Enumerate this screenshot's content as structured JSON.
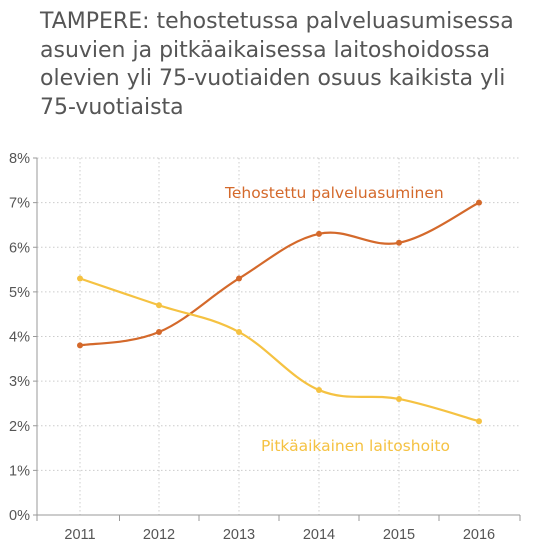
{
  "chart_data": {
    "type": "line",
    "title": "TAMPERE: tehostetussa palveluasumisessa asuvien ja pitkäaikaisessa laitoshoidossa olevien yli 75-vuotiaiden osuus kaikista yli 75-vuotiaista",
    "xlabel": "",
    "ylabel": "",
    "x": [
      "2011",
      "2012",
      "2013",
      "2014",
      "2015",
      "2016"
    ],
    "ylim": [
      0,
      8
    ],
    "yticks": [
      "0%",
      "1%",
      "2%",
      "3%",
      "4%",
      "5%",
      "6%",
      "7%",
      "8%"
    ],
    "grid": true,
    "legend": "inline",
    "series": [
      {
        "name": "Tehostettu palveluasuminen",
        "color": "#d4692b",
        "values": [
          3.8,
          4.1,
          5.3,
          6.3,
          6.1,
          7.0
        ]
      },
      {
        "name": "Pitkäaikainen laitoshoito",
        "color": "#f5c242",
        "values": [
          5.3,
          4.7,
          4.1,
          2.8,
          2.6,
          2.1
        ]
      }
    ]
  }
}
